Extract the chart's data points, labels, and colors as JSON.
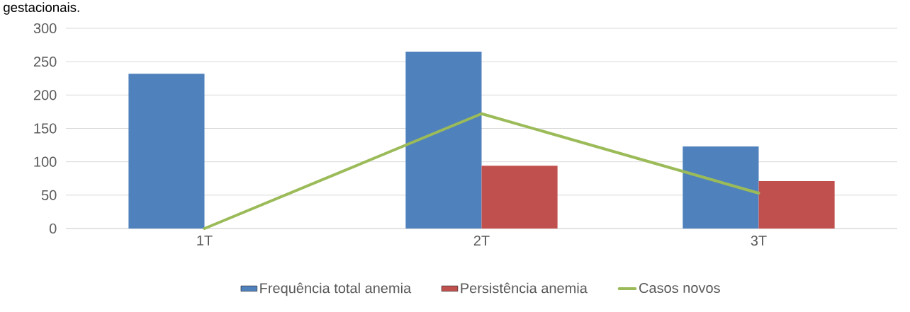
{
  "chart_data": {
    "type": "bar",
    "annotations": [
      "gestacionais."
    ],
    "categories": [
      "1T",
      "2T",
      "3T"
    ],
    "series": [
      {
        "name": "Frequência total anemia",
        "color": "#4f81bd",
        "values": [
          232,
          265,
          123
        ]
      },
      {
        "name": "Persistência anemia",
        "color": "#c0504d",
        "values": [
          0,
          94,
          71
        ]
      },
      {
        "name": "Casos novos",
        "type": "line",
        "color": "#9bbb59",
        "values": [
          0,
          172,
          53
        ]
      }
    ],
    "ylim": [
      0,
      300
    ],
    "yticks": [
      0,
      50,
      100,
      150,
      200,
      250,
      300
    ],
    "grid": "y",
    "legend": "bottom",
    "marker": "none",
    "line_style": "solid"
  }
}
